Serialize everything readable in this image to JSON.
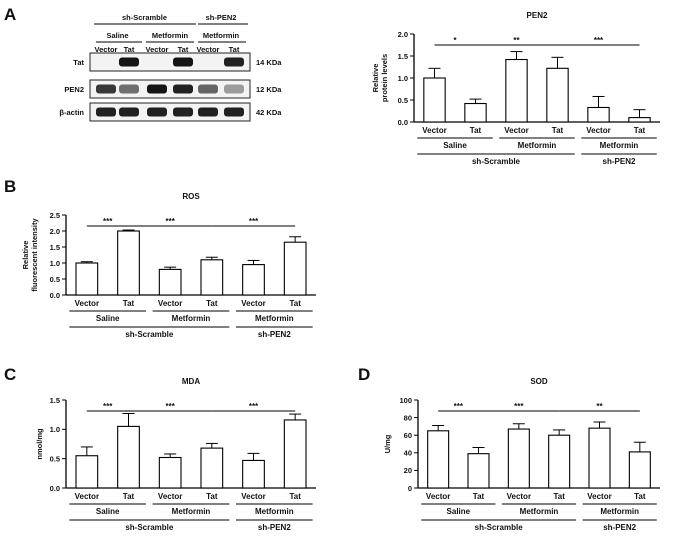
{
  "panels": {
    "A": {
      "letter": "A",
      "blot": {
        "groups": [
          {
            "label": "sh-Scramble",
            "sublabels": [
              "Saline",
              "Metformin"
            ]
          },
          {
            "label": "sh-PEN2",
            "sublabels": [
              "Metformin"
            ]
          }
        ],
        "lanes": [
          "Vector",
          "Tat",
          "Vector",
          "Tat",
          "Vector",
          "Tat"
        ],
        "rows": [
          {
            "name": "Tat",
            "size": "14 KDa",
            "intensity": [
              0.0,
              0.95,
              0.0,
              0.95,
              0.0,
              0.9
            ]
          },
          {
            "name": "PEN2",
            "size": "12 KDa",
            "intensity": [
              0.8,
              0.55,
              0.95,
              0.9,
              0.6,
              0.35
            ]
          },
          {
            "name": "β-actin",
            "size": "42 KDa",
            "intensity": [
              0.9,
              0.9,
              0.9,
              0.9,
              0.9,
              0.9
            ]
          }
        ]
      }
    },
    "B": {
      "letter": "B"
    },
    "C": {
      "letter": "C"
    },
    "D": {
      "letter": "D"
    }
  },
  "chart_data": [
    {
      "id": "pen2",
      "type": "bar",
      "title": "PEN2",
      "ylabel": "Relative protein levels",
      "ylim": [
        0,
        2.0
      ],
      "yticks": [
        "0.0",
        "0.5",
        "1.0",
        "1.5",
        "2.0"
      ],
      "categories": [
        "Vector",
        "Tat",
        "Vector",
        "Tat",
        "Vector",
        "Tat"
      ],
      "values": [
        1.0,
        0.42,
        1.42,
        1.22,
        0.33,
        0.1
      ],
      "errors": [
        0.22,
        0.1,
        0.18,
        0.25,
        0.25,
        0.18
      ],
      "group_labels": [
        {
          "text": "Saline",
          "level": 1,
          "from": 0,
          "to": 1
        },
        {
          "text": "Metformin",
          "level": 1,
          "from": 2,
          "to": 3
        },
        {
          "text": "Metformin",
          "level": 1,
          "from": 4,
          "to": 5
        },
        {
          "text": "sh-Scramble",
          "level": 2,
          "from": 0,
          "to": 3
        },
        {
          "text": "sh-PEN2",
          "level": 2,
          "from": 4,
          "to": 5
        }
      ],
      "significance": [
        {
          "from": 0,
          "to": 1,
          "label": "*"
        },
        {
          "from": 1,
          "to": 3,
          "label": "**"
        },
        {
          "from": 3,
          "to": 5,
          "label": "***"
        }
      ]
    },
    {
      "id": "ros",
      "type": "bar",
      "title": "ROS",
      "ylabel": "Relative fluorescent intensity",
      "ylim": [
        0,
        2.5
      ],
      "yticks": [
        "0.0",
        "0.5",
        "1.0",
        "1.5",
        "2.0",
        "2.5"
      ],
      "categories": [
        "Vector",
        "Tat",
        "Vector",
        "Tat",
        "Vector",
        "Tat"
      ],
      "values": [
        1.0,
        2.0,
        0.8,
        1.1,
        0.95,
        1.65
      ],
      "errors": [
        0.04,
        0.03,
        0.07,
        0.08,
        0.13,
        0.17
      ],
      "group_labels": [
        {
          "text": "Saline",
          "level": 1,
          "from": 0,
          "to": 1
        },
        {
          "text": "Metformin",
          "level": 1,
          "from": 2,
          "to": 3
        },
        {
          "text": "Metformin",
          "level": 1,
          "from": 4,
          "to": 5
        },
        {
          "text": "sh-Scramble",
          "level": 2,
          "from": 0,
          "to": 3
        },
        {
          "text": "sh-PEN2",
          "level": 2,
          "from": 4,
          "to": 5
        }
      ],
      "significance": [
        {
          "from": 0,
          "to": 1,
          "label": "***"
        },
        {
          "from": 1,
          "to": 3,
          "label": "***"
        },
        {
          "from": 3,
          "to": 5,
          "label": "***"
        }
      ]
    },
    {
      "id": "mda",
      "type": "bar",
      "title": "MDA",
      "ylabel": "nmol/mg",
      "ylim": [
        0,
        1.5
      ],
      "yticks": [
        "0.0",
        "0.5",
        "1.0",
        "1.5"
      ],
      "categories": [
        "Vector",
        "Tat",
        "Vector",
        "Tat",
        "Vector",
        "Tat"
      ],
      "values": [
        0.55,
        1.05,
        0.52,
        0.68,
        0.47,
        1.16
      ],
      "errors": [
        0.15,
        0.22,
        0.06,
        0.08,
        0.12,
        0.1
      ],
      "group_labels": [
        {
          "text": "Saline",
          "level": 1,
          "from": 0,
          "to": 1
        },
        {
          "text": "Metformin",
          "level": 1,
          "from": 2,
          "to": 3
        },
        {
          "text": "Metformin",
          "level": 1,
          "from": 4,
          "to": 5
        },
        {
          "text": "sh-Scramble",
          "level": 2,
          "from": 0,
          "to": 3
        },
        {
          "text": "sh-PEN2",
          "level": 2,
          "from": 4,
          "to": 5
        }
      ],
      "significance": [
        {
          "from": 0,
          "to": 1,
          "label": "***"
        },
        {
          "from": 1,
          "to": 3,
          "label": "***"
        },
        {
          "from": 3,
          "to": 5,
          "label": "***"
        }
      ]
    },
    {
      "id": "sod",
      "type": "bar",
      "title": "SOD",
      "ylabel": "U/mg",
      "ylim": [
        0,
        100
      ],
      "yticks": [
        "0",
        "20",
        "40",
        "60",
        "80",
        "100"
      ],
      "categories": [
        "Vector",
        "Tat",
        "Vector",
        "Tat",
        "Vector",
        "Tat"
      ],
      "values": [
        65,
        39,
        67,
        60,
        68,
        41
      ],
      "errors": [
        6,
        7,
        6,
        6,
        7,
        11
      ],
      "group_labels": [
        {
          "text": "Saline",
          "level": 1,
          "from": 0,
          "to": 1
        },
        {
          "text": "Metformin",
          "level": 1,
          "from": 2,
          "to": 3
        },
        {
          "text": "Metformin",
          "level": 1,
          "from": 4,
          "to": 5
        },
        {
          "text": "sh-Scramble",
          "level": 2,
          "from": 0,
          "to": 3
        },
        {
          "text": "sh-PEN2",
          "level": 2,
          "from": 4,
          "to": 5
        }
      ],
      "significance": [
        {
          "from": 0,
          "to": 1,
          "label": "***"
        },
        {
          "from": 1,
          "to": 3,
          "label": "***"
        },
        {
          "from": 3,
          "to": 5,
          "label": "**"
        }
      ]
    }
  ]
}
